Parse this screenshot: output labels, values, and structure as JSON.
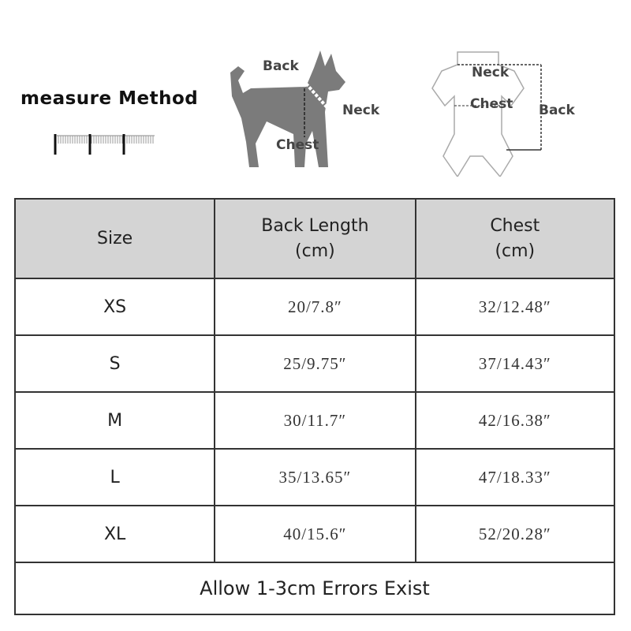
{
  "header": {
    "method_title": "measure Method",
    "dog_labels": {
      "back": "Back",
      "neck": "Neck",
      "chest": "Chest"
    },
    "garment_labels": {
      "neck": "Neck",
      "chest": "Chest",
      "back": "Back"
    },
    "icons": [
      "ruler-icon",
      "dog-silhouette-icon",
      "garment-icon"
    ]
  },
  "table": {
    "columns": [
      "Size",
      "Back Length",
      "Chest"
    ],
    "column_units": [
      "",
      "(cm)",
      "(cm)"
    ],
    "rows": [
      {
        "size": "XS",
        "back": "20/7.8″",
        "chest": "32/12.48″"
      },
      {
        "size": "S",
        "back": "25/9.75″",
        "chest": "37/14.43″"
      },
      {
        "size": "M",
        "back": "30/11.7″",
        "chest": "42/16.38″"
      },
      {
        "size": "L",
        "back": "35/13.65″",
        "chest": "47/18.33″"
      },
      {
        "size": "XL",
        "back": "40/15.6″",
        "chest": "52/20.28″"
      }
    ],
    "footer": "Allow 1-3cm Errors Exist",
    "header_bg": "#d4d4d4"
  }
}
